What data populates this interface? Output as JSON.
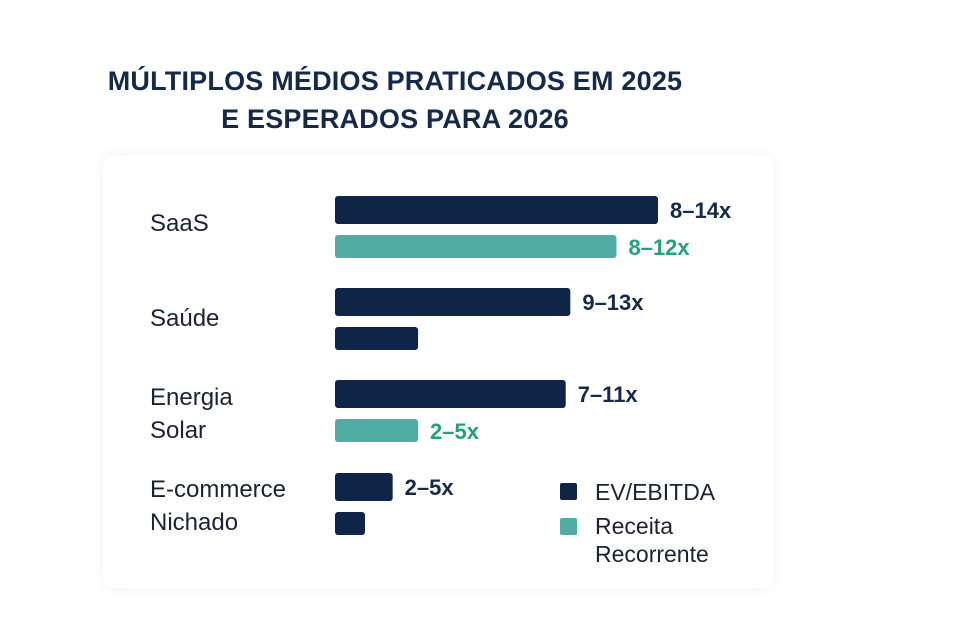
{
  "chart_data": {
    "type": "bar",
    "orientation": "horizontal",
    "title_lines": [
      "MÚLTIPLOS MÉDIOS PRATICADOS EM 2025",
      "E ESPERADOS PARA 2026"
    ],
    "categories": [
      {
        "lines": [
          "SaaS"
        ]
      },
      {
        "lines": [
          "Saúde"
        ]
      },
      {
        "lines": [
          "Energia",
          "Solar"
        ]
      },
      {
        "lines": [
          "E-commerce",
          "Nichado"
        ]
      }
    ],
    "bars": [
      {
        "category": 0,
        "series": "EV/EBITDA",
        "value": 14,
        "label": "8–14x",
        "color": "#0e2548",
        "label_color": "#15294a"
      },
      {
        "category": 0,
        "series": "Receita Recorrente",
        "value": 12.2,
        "label": "8–12x",
        "color": "#4fada4",
        "label_color": "#1fa37a"
      },
      {
        "category": 1,
        "series": "EV/EBITDA",
        "value": 10.2,
        "label": "9–13x",
        "color": "#0e2548",
        "label_color": "#15294a"
      },
      {
        "category": 1,
        "series": "EV/EBITDA",
        "value": 3.6,
        "label": "",
        "color": "#0e2548",
        "label_color": "#15294a"
      },
      {
        "category": 2,
        "series": "EV/EBITDA",
        "value": 10,
        "label": "7–11x",
        "color": "#0e2548",
        "label_color": "#15294a"
      },
      {
        "category": 2,
        "series": "Receita Recorrente",
        "value": 3.6,
        "label": "2–5x",
        "color": "#4fada4",
        "label_color": "#1fa37a"
      },
      {
        "category": 3,
        "series": "EV/EBITDA",
        "value": 2.5,
        "label": "2–5x",
        "color": "#0e2548",
        "label_color": "#15294a"
      },
      {
        "category": 3,
        "series": "EV/EBITDA",
        "value": 1.3,
        "label": "",
        "color": "#0e2548",
        "label_color": "#15294a"
      }
    ],
    "xlim": [
      0,
      14
    ],
    "grid": false,
    "axes_visible": false,
    "legend": {
      "placement": "bottom-right",
      "entries": [
        {
          "name": "EV/EBITDA",
          "color": "#0e2548"
        },
        {
          "name": "Receita Recorrente",
          "lines": [
            "Receita",
            "Recorrente"
          ],
          "color": "#4fada4"
        }
      ]
    }
  }
}
